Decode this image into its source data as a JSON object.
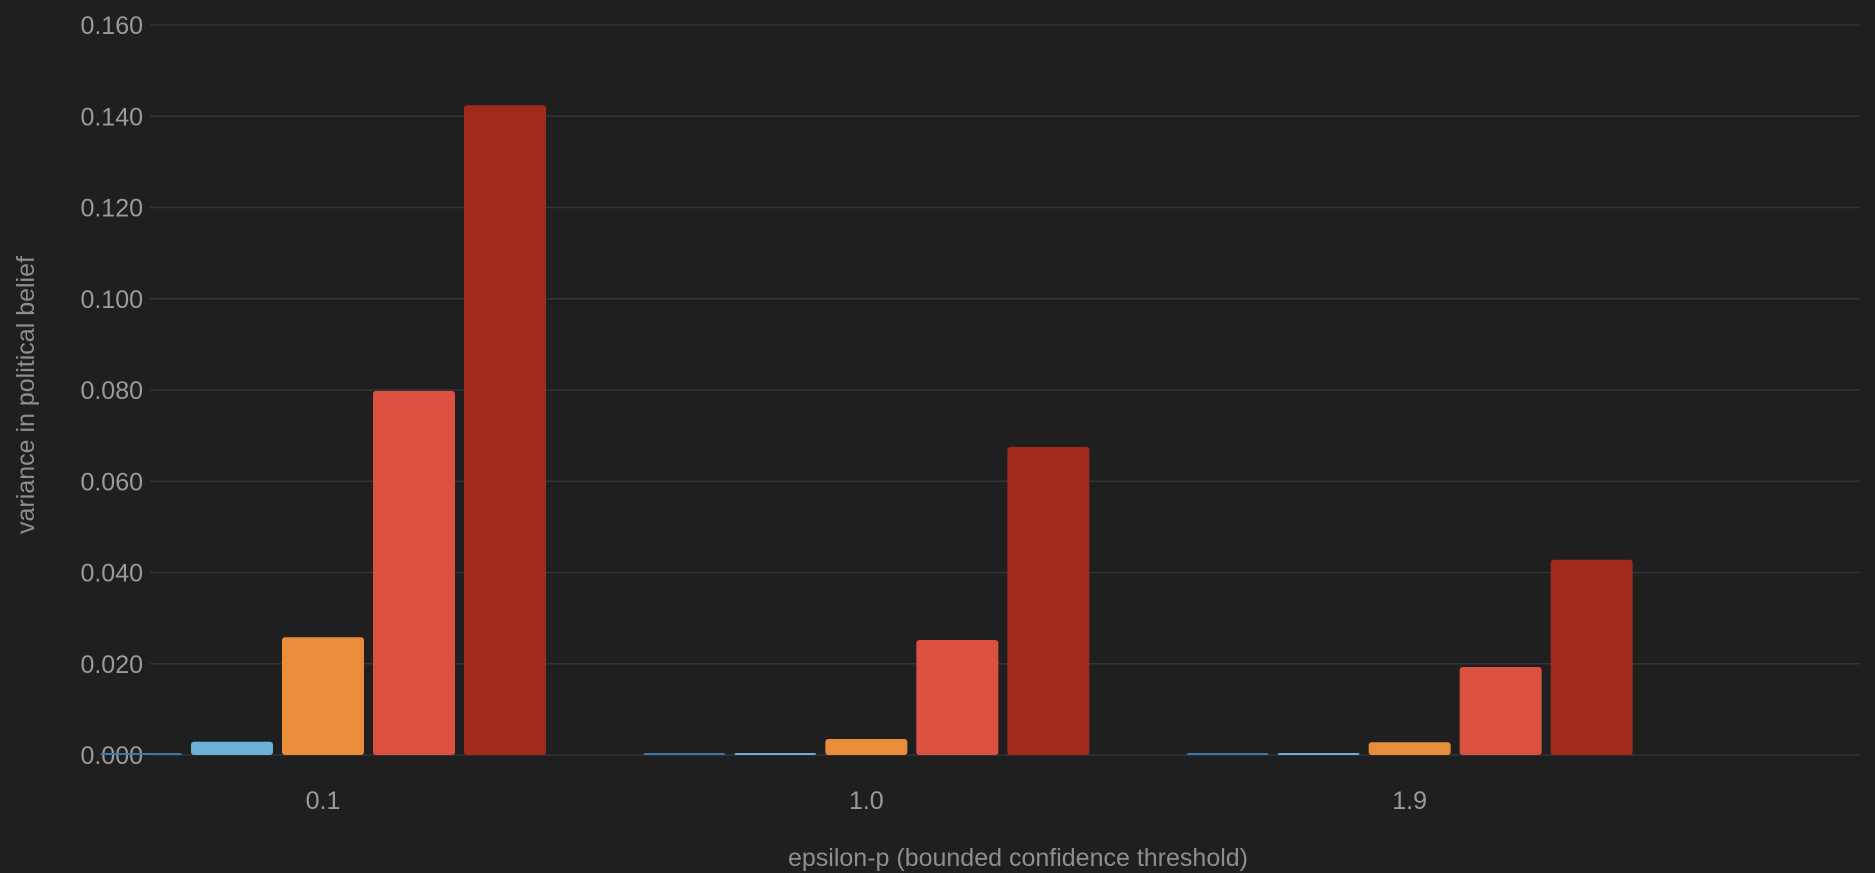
{
  "chart_data": {
    "type": "bar",
    "xlabel": "epsilon-p (bounded confidence threshold)",
    "ylabel": "variance in political belief",
    "categories": [
      "0.1",
      "1.0",
      "1.9"
    ],
    "ylim": [
      0,
      0.16
    ],
    "yticks": [
      "0.000",
      "0.020",
      "0.040",
      "0.060",
      "0.080",
      "0.100",
      "0.120",
      "0.140",
      "0.160"
    ],
    "grid": true,
    "legend": "none",
    "series": [
      {
        "color": "#3c78a8",
        "values": [
          0.0002,
          0.0002,
          0.0002
        ]
      },
      {
        "color": "#6baed6",
        "values": [
          0.0029,
          0.0003,
          0.0003
        ]
      },
      {
        "color": "#ea8d3b",
        "values": [
          0.0258,
          0.0035,
          0.0028
        ]
      },
      {
        "color": "#dc5040",
        "values": [
          0.0798,
          0.0252,
          0.0193
        ]
      },
      {
        "color": "#a1291e",
        "values": [
          0.1424,
          0.0675,
          0.0428
        ]
      }
    ]
  }
}
